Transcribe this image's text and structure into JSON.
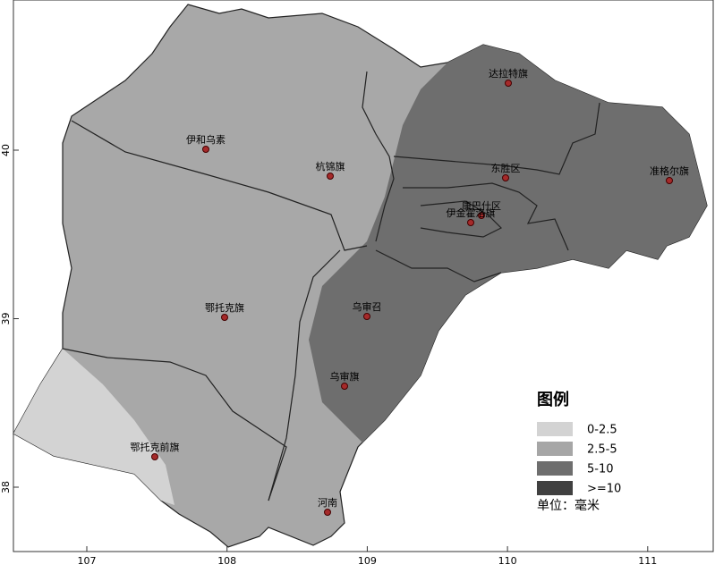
{
  "map": {
    "x_ticks": [
      107,
      108,
      109,
      110,
      111
    ],
    "y_ticks": [
      40,
      39,
      38
    ],
    "places": [
      "伊和乌素",
      "杭锦旗",
      "达拉特旗",
      "东胜区",
      "准格尔旗",
      "康巴什区",
      "伊金霍洛旗",
      "鄂托克旗",
      "乌审召",
      "乌审旗",
      "鄂托克前旗",
      "河南"
    ],
    "legend": {
      "title": "图例",
      "items": [
        "0-2.5",
        "2.5-5",
        "5-10",
        ">=10"
      ],
      "colors": [
        "#d3d3d3",
        "#a6a6a6",
        "#6e6e6e",
        "#404040"
      ],
      "unit": "单位：毫米"
    }
  }
}
